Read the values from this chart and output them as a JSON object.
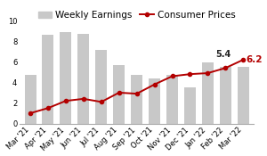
{
  "categories": [
    "Mar '21",
    "Apr '21",
    "May '21",
    "Jun '21",
    "Jul '21",
    "Aug '21",
    "Sep '21",
    "Oct '21",
    "Nov '21",
    "Dec '21",
    "Jan '22",
    "Feb '22",
    "Mar '22"
  ],
  "weekly_earnings": [
    4.7,
    8.6,
    8.9,
    8.7,
    7.2,
    5.7,
    4.7,
    4.4,
    4.7,
    3.5,
    5.9,
    5.5,
    5.5
  ],
  "consumer_prices": [
    1.0,
    1.5,
    2.2,
    2.4,
    2.1,
    3.0,
    2.9,
    3.8,
    4.6,
    4.8,
    4.9,
    5.4,
    6.2
  ],
  "bar_color": "#c8c8c8",
  "line_color": "#b30000",
  "annotation_feb": "5.4",
  "annotation_mar": "6.2",
  "annotation_color_feb": "#222222",
  "annotation_color_mar": "#b30000",
  "legend_bar_label": "Weekly Earnings",
  "legend_line_label": "Consumer Prices",
  "ylim": [
    0,
    10
  ],
  "yticks": [
    0,
    2,
    4,
    6,
    8,
    10
  ],
  "legend_fontsize": 7.5,
  "tick_fontsize": 6.0,
  "background_color": "#ffffff"
}
